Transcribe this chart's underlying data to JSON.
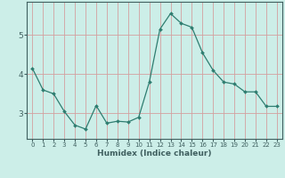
{
  "x": [
    0,
    1,
    2,
    3,
    4,
    5,
    6,
    7,
    8,
    9,
    10,
    11,
    12,
    13,
    14,
    15,
    16,
    17,
    18,
    19,
    20,
    21,
    22,
    23
  ],
  "y": [
    4.15,
    3.6,
    3.5,
    3.05,
    2.7,
    2.6,
    3.2,
    2.75,
    2.8,
    2.78,
    2.9,
    3.8,
    5.15,
    5.55,
    5.3,
    5.2,
    4.55,
    4.1,
    3.8,
    3.75,
    3.55,
    3.55,
    3.18,
    3.18
  ],
  "xlabel": "Humidex (Indice chaleur)",
  "yticks": [
    3,
    4,
    5
  ],
  "xticks": [
    0,
    1,
    2,
    3,
    4,
    5,
    6,
    7,
    8,
    9,
    10,
    11,
    12,
    13,
    14,
    15,
    16,
    17,
    18,
    19,
    20,
    21,
    22,
    23
  ],
  "line_color": "#2e7d70",
  "marker_color": "#2e7d70",
  "bg_color": "#cceee8",
  "grid_color_v": "#d4a0a0",
  "grid_color_h": "#b8d8d4",
  "axis_color": "#406060",
  "xlim": [
    -0.5,
    23.5
  ],
  "ylim": [
    2.35,
    5.85
  ]
}
